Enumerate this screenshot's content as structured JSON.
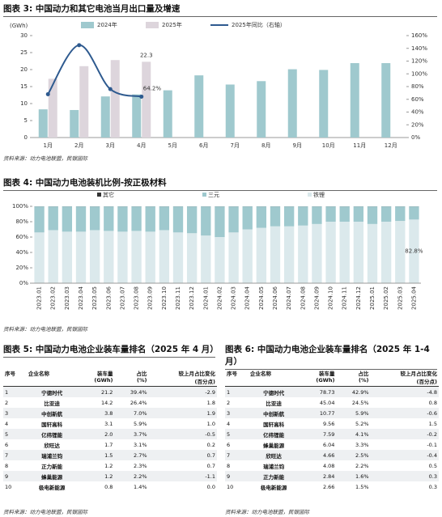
{
  "charts": [
    {
      "heading": "图表 3: 中国动力和其它电池当月出口量及增速",
      "source": "资料来源：动力电池联盟，民银国际",
      "chart_data": {
        "type": "bar",
        "y_label": "(GWh)",
        "categories": [
          "1月",
          "2月",
          "3月",
          "4月",
          "5月",
          "6月",
          "7月",
          "8月",
          "9月",
          "10月",
          "11月",
          "12月"
        ],
        "series": [
          {
            "name": "2024年",
            "color": "#9fc9ce",
            "values": [
              8.3,
              8.1,
              12.1,
              12.7,
              13.9,
              18.3,
              15.6,
              16.6,
              20.1,
              19.9,
              21.9,
              21.9
            ]
          },
          {
            "name": "2025年",
            "color": "#ddd5dc",
            "values": [
              17.3,
              21.0,
              22.8,
              22.3,
              null,
              null,
              null,
              null,
              null,
              null,
              null,
              null
            ],
            "value_labels": [
              null,
              null,
              null,
              "22.3",
              null,
              null,
              null,
              null,
              null,
              null,
              null,
              null
            ]
          },
          {
            "name": "2025年同比（右轴）",
            "type": "line",
            "axis": "y2",
            "color": "#2e5a8f",
            "values": [
              68,
              145,
              76,
              64.2,
              null,
              null,
              null,
              null,
              null,
              null,
              null,
              null
            ],
            "value_labels": [
              null,
              null,
              null,
              "64.2%",
              null,
              null,
              null,
              null,
              null,
              null,
              null,
              null
            ]
          }
        ],
        "ylim": [
          0,
          30
        ],
        "yticks": [
          0,
          5,
          10,
          15,
          20,
          25,
          30
        ],
        "y2lim": [
          0,
          160
        ],
        "y2ticks": [
          {
            "value": 0,
            "label": "0%"
          },
          {
            "value": 20,
            "label": "20%"
          },
          {
            "value": 40,
            "label": "40%"
          },
          {
            "value": 60,
            "label": "60%"
          },
          {
            "value": 80,
            "label": "80%"
          },
          {
            "value": 100,
            "label": "100%"
          },
          {
            "value": 120,
            "label": "120%"
          },
          {
            "value": 140,
            "label": "140%"
          },
          {
            "value": 160,
            "label": "160%"
          }
        ]
      }
    },
    {
      "heading": "图表 4: 中国动力电池装机比例-按正极材料",
      "source": "资料来源：动力电池联盟，民银国际",
      "chart_data": {
        "type": "stacked_bar",
        "categories": [
          "2023.01",
          "2023.02",
          "2023.03",
          "2023.04",
          "2023.05",
          "2023.06",
          "2023.07",
          "2023.08",
          "2023.09",
          "2023.10",
          "2023.11",
          "2023.12",
          "2024.01",
          "2024.02",
          "2024.03",
          "2024.04",
          "2024.05",
          "2024.06",
          "2024.07",
          "2024.08",
          "2024.09",
          "2024.10",
          "2024.11",
          "2024.12",
          "2025.01",
          "2025.02",
          "2025.03",
          "2025.04"
        ],
        "series": [
          {
            "name": "其它",
            "color": "#333333",
            "values": [
              0.1,
              0.1,
              0.1,
              0.1,
              0.1,
              0.1,
              0.1,
              0.1,
              0.1,
              0.1,
              0.1,
              0.1,
              0.1,
              0.1,
              0.1,
              0.1,
              0.1,
              0.1,
              0.1,
              0.1,
              0.1,
              0.1,
              0.1,
              0.1,
              0.1,
              0.1,
              0.1,
              0.1
            ]
          },
          {
            "name": "三元",
            "color": "#9fc9ce",
            "values": [
              33.9,
              30.9,
              32.9,
              32.9,
              30.9,
              31.9,
              32.9,
              31.9,
              32.9,
              30.9,
              33.9,
              34.9,
              37.9,
              39.9,
              33.9,
              29.9,
              27.9,
              25.9,
              25.9,
              24.9,
              22.9,
              19.9,
              19.9,
              19.9,
              22.9,
              19.9,
              18.9,
              17.1
            ]
          },
          {
            "name": "铁锂",
            "color": "#dbe9ec",
            "values": [
              66,
              69,
              67,
              67,
              69,
              68,
              67,
              68,
              67,
              69,
              66,
              65,
              62,
              60,
              66,
              70,
              72,
              74,
              74,
              75,
              77,
              80,
              80,
              80,
              77,
              80,
              81,
              82.8
            ],
            "value_labels": [
              null,
              null,
              null,
              null,
              null,
              null,
              null,
              null,
              null,
              null,
              null,
              null,
              null,
              null,
              null,
              null,
              null,
              null,
              null,
              null,
              null,
              null,
              null,
              null,
              null,
              null,
              null,
              "82.8%"
            ]
          }
        ],
        "ylim": [
          0,
          100
        ],
        "yticks": [
          {
            "value": 0,
            "label": "0%"
          },
          {
            "value": 20,
            "label": "20%"
          },
          {
            "value": 40,
            "label": "40%"
          },
          {
            "value": 60,
            "label": "60%"
          },
          {
            "value": 80,
            "label": "80%"
          },
          {
            "value": 100,
            "label": "100%"
          }
        ]
      }
    }
  ],
  "tables": [
    {
      "heading": "图表 5: 中国动力电池企业装车量排名（2025 年 4 月）",
      "source": "资料来源：动力电池联盟，民银国际",
      "header": [
        [
          "序号"
        ],
        [
          "企业名称"
        ],
        [
          "装车量",
          "(GWh)"
        ],
        [
          "占比",
          "(%)"
        ],
        [
          "较上月占比变化",
          "(百分点)"
        ]
      ],
      "rows": [
        [
          "1",
          "宁德时代",
          "21.2",
          "39.4%",
          "-2.9"
        ],
        [
          "2",
          "比亚迪",
          "14.2",
          "26.4%",
          "1.8"
        ],
        [
          "3",
          "中创新航",
          "3.8",
          "7.0%",
          "1.9"
        ],
        [
          "4",
          "国轩高科",
          "3.1",
          "5.9%",
          "1.0"
        ],
        [
          "5",
          "亿纬锂能",
          "2.0",
          "3.7%",
          "-0.5"
        ],
        [
          "6",
          "欣旺达",
          "1.7",
          "3.1%",
          "0.2"
        ],
        [
          "7",
          "瑞浦兰钧",
          "1.5",
          "2.7%",
          "0.7"
        ],
        [
          "8",
          "正力新能",
          "1.2",
          "2.3%",
          "0.7"
        ],
        [
          "9",
          "蜂巢能源",
          "1.2",
          "2.2%",
          "-1.1"
        ],
        [
          "10",
          "极电新能源",
          "0.8",
          "1.4%",
          "0.0"
        ]
      ]
    },
    {
      "heading": "图表 6: 中国动力电池企业装车量排名（2025 年 1-4 月）",
      "source": "资料来源：动力电池联盟，民银国际",
      "header": [
        [
          "序号"
        ],
        [
          "企业名称"
        ],
        [
          "装车量",
          "(GWh)"
        ],
        [
          "占比",
          "(%)"
        ],
        [
          "较上月占比变化",
          "(百分点)"
        ]
      ],
      "rows": [
        [
          "1",
          "宁德时代",
          "78.73",
          "42.9%",
          "-4.8"
        ],
        [
          "2",
          "比亚迪",
          "45.04",
          "24.5%",
          "0.8"
        ],
        [
          "3",
          "中创新航",
          "10.77",
          "5.9%",
          "-0.6"
        ],
        [
          "4",
          "国轩高科",
          "9.56",
          "5.2%",
          "1.5"
        ],
        [
          "5",
          "亿纬锂能",
          "7.59",
          "4.1%",
          "-0.2"
        ],
        [
          "6",
          "蜂巢能源",
          "6.04",
          "3.3%",
          "-0.1"
        ],
        [
          "7",
          "欣旺达",
          "4.66",
          "2.5%",
          "-0.4"
        ],
        [
          "8",
          "瑞浦兰钧",
          "4.08",
          "2.2%",
          "0.5"
        ],
        [
          "9",
          "正力新能",
          "2.84",
          "1.6%",
          "0.3"
        ],
        [
          "10",
          "极电新能源",
          "2.66",
          "1.5%",
          "0.3"
        ]
      ]
    }
  ]
}
